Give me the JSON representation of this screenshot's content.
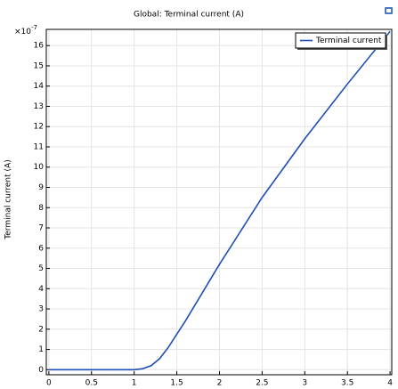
{
  "chart_data": {
    "type": "line",
    "title": "Global: Terminal current (A)",
    "y_label": "Terminal current (A)",
    "y_multiplier": {
      "base": "×10",
      "exponent": "-7"
    },
    "x": [
      0,
      0.5,
      1.0,
      1.1,
      1.2,
      1.3,
      1.4,
      1.5,
      1.6,
      1.8,
      2.0,
      2.5,
      3.0,
      3.5,
      4.0
    ],
    "series": [
      {
        "name": "Terminal current",
        "color": "#1f4fb4",
        "values": [
          0,
          0,
          0,
          0.05,
          0.2,
          0.55,
          1.1,
          1.75,
          2.4,
          3.8,
          5.2,
          8.5,
          11.4,
          14.1,
          16.7
        ]
      }
    ],
    "xlim": [
      -0.03,
      4.02
    ],
    "ylim": [
      -0.25,
      16.8
    ],
    "xticks": [
      0,
      0.5,
      1,
      1.5,
      2,
      2.5,
      3,
      3.5,
      4
    ],
    "yticks": [
      0,
      1,
      2,
      3,
      4,
      5,
      6,
      7,
      8,
      9,
      10,
      11,
      12,
      13,
      14,
      15,
      16
    ],
    "grid": true,
    "legend": "upper right"
  }
}
